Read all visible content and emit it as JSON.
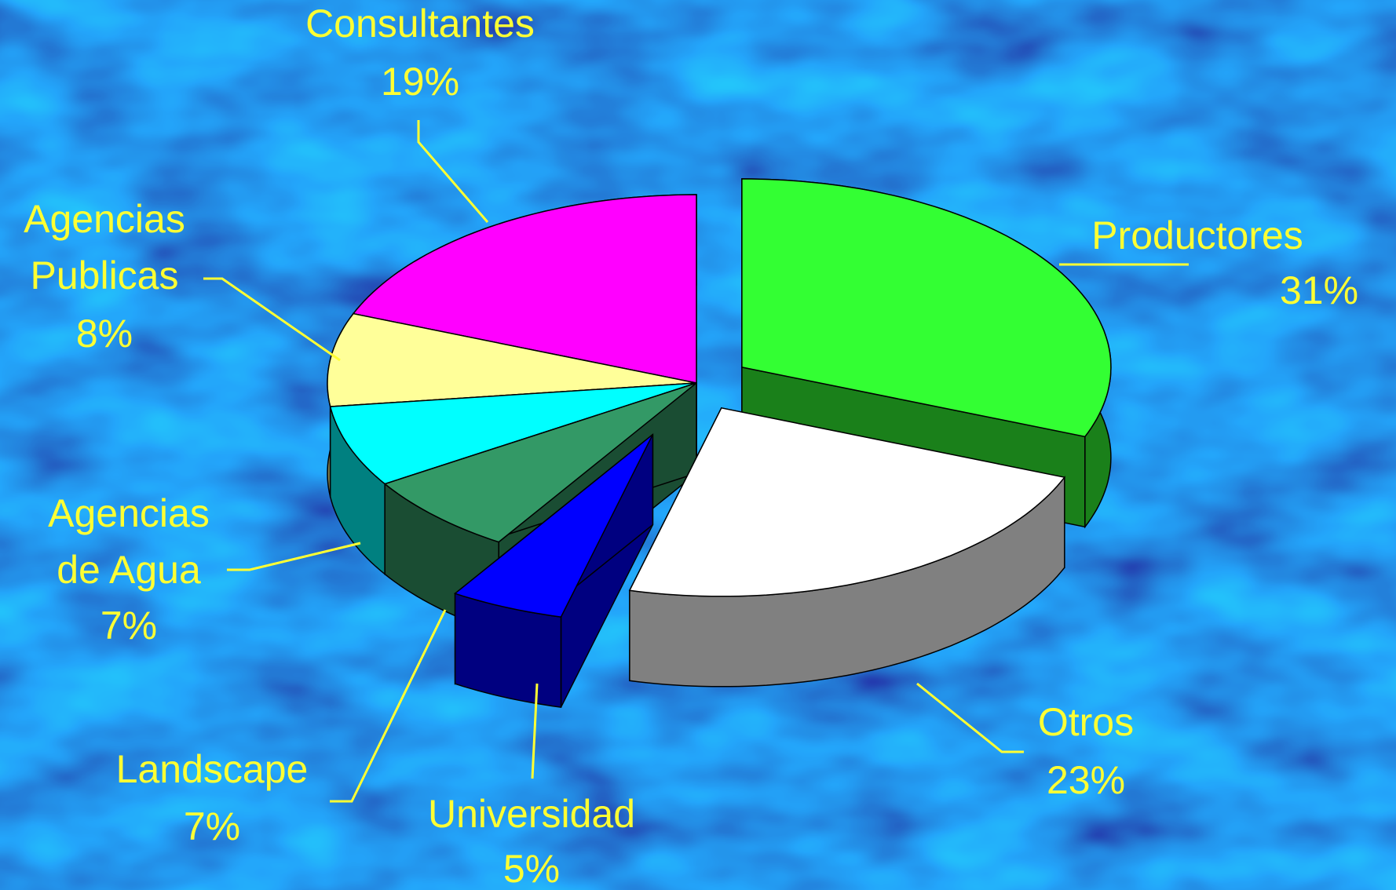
{
  "chart_data": {
    "type": "pie",
    "categories": [
      "Productores",
      "Otros",
      "Universidad",
      "Landscape",
      "Agencias de Agua",
      "Agencias Publicas",
      "Consultantes"
    ],
    "values": [
      31,
      23,
      5,
      7,
      7,
      8,
      19
    ],
    "value_labels": [
      "31%",
      "23%",
      "5%",
      "7%",
      "7%",
      "8%",
      "19%"
    ],
    "colors": [
      "#33ff33",
      "#ffffff",
      "#0000ff",
      "#339966",
      "#00ffff",
      "#ffff99",
      "#ff00ff"
    ]
  }
}
